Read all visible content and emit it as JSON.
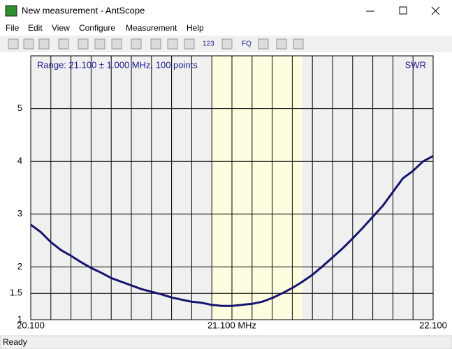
{
  "window": {
    "title": "New measurement - AntScope"
  },
  "menu": [
    "File",
    "Edit",
    "View",
    "Configure",
    "Measurement",
    "Help"
  ],
  "toolbar": {
    "labels": [
      "123",
      "FQ"
    ]
  },
  "status": "Ready",
  "chart_data": {
    "type": "line",
    "annotations": [
      "Range: 21.100 ± 1.000 MHz, 100 points",
      "SWR"
    ],
    "x": [
      20.1,
      20.15,
      20.2,
      20.25,
      20.3,
      20.35,
      20.4,
      20.45,
      20.5,
      20.55,
      20.6,
      20.65,
      20.7,
      20.75,
      20.8,
      20.85,
      20.9,
      20.95,
      21.0,
      21.05,
      21.1,
      21.15,
      21.2,
      21.25,
      21.3,
      21.35,
      21.4,
      21.45,
      21.5,
      21.55,
      21.6,
      21.65,
      21.7,
      21.75,
      21.8,
      21.85,
      21.9,
      21.95,
      22.0,
      22.05,
      22.1
    ],
    "series": [
      {
        "color": "#14146e",
        "values": [
          2.8,
          2.66,
          2.47,
          2.32,
          2.21,
          2.09,
          1.98,
          1.89,
          1.79,
          1.72,
          1.65,
          1.58,
          1.53,
          1.48,
          1.42,
          1.38,
          1.34,
          1.32,
          1.28,
          1.26,
          1.26,
          1.28,
          1.3,
          1.34,
          1.41,
          1.5,
          1.6,
          1.72,
          1.85,
          2.01,
          2.18,
          2.35,
          2.54,
          2.74,
          2.95,
          3.16,
          3.42,
          3.68,
          3.82,
          4.0,
          4.1
        ]
      }
    ],
    "xlim": [
      20.1,
      22.1
    ],
    "ylim": [
      1,
      6
    ],
    "xticks": [
      {
        "value": 20.1,
        "label": "20.100"
      },
      {
        "value": 21.1,
        "label": "21.100 MHz"
      },
      {
        "value": 22.1,
        "label": "22.100"
      }
    ],
    "yticks": [
      1,
      1.5,
      2,
      3,
      4,
      5
    ],
    "xgrid": [
      20.1,
      20.2,
      20.3,
      20.4,
      20.5,
      20.6,
      20.7,
      20.8,
      20.9,
      21.0,
      21.1,
      21.2,
      21.3,
      21.4,
      21.5,
      21.6,
      21.7,
      21.8,
      21.9,
      22.0,
      22.1
    ],
    "band": [
      21.0,
      21.45
    ],
    "band_color": "#fffde0",
    "background": "#f0f0f0",
    "grid_color": "#000000",
    "annotation_color": "#1a1a8c"
  }
}
